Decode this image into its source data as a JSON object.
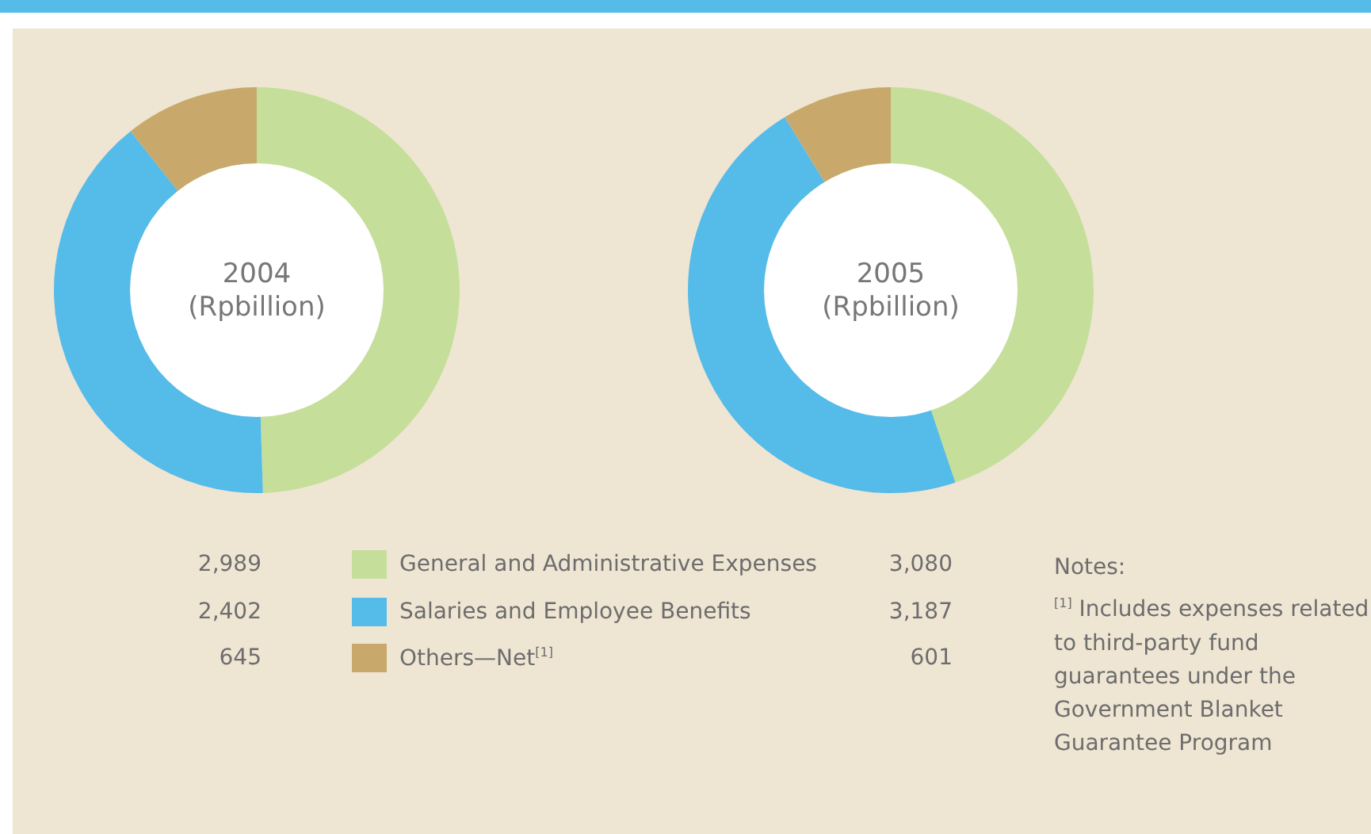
{
  "chart_data": {
    "type": "donut",
    "subtitle": "(Rpbillion)",
    "categories": [
      "General and Administrative Expenses",
      "Salaries and Employee Benefits",
      "Others—Net$^{[1]}$"
    ],
    "colors": [
      "#c5df9b",
      "#55bbe9",
      "#c8a96b"
    ],
    "legend": "bottom",
    "series": [
      {
        "name": "2004",
        "values": [
          2989,
          2402,
          645
        ],
        "value_labels": [
          "2,989",
          "2,402",
          "645"
        ]
      },
      {
        "name": "2005",
        "values": [
          3080,
          3187,
          601
        ],
        "value_labels": [
          "3,080",
          "3,187",
          "601"
        ]
      }
    ],
    "annotations": [
      "Notes:",
      "$^{[1]}$ Includes expenses related to third-party fund guarantees under the Government Blanket Guarantee Program"
    ]
  }
}
